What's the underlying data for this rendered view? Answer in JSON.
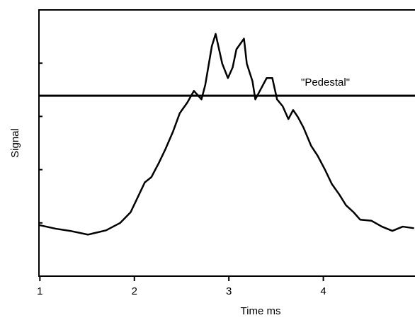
{
  "chart_data": {
    "type": "line",
    "x_label": "Time ms",
    "y_label": "Signal",
    "x": [
      0.99,
      1.17,
      1.32,
      1.51,
      1.7,
      1.85,
      1.96,
      2.03,
      2.11,
      2.18,
      2.26,
      2.33,
      2.41,
      2.48,
      2.56,
      2.63,
      2.71,
      2.75,
      2.82,
      2.86,
      2.93,
      2.99,
      3.04,
      3.08,
      3.16,
      3.19,
      3.25,
      3.28,
      3.34,
      3.4,
      3.46,
      3.51,
      3.57,
      3.63,
      3.68,
      3.73,
      3.79,
      3.87,
      3.94,
      4.02,
      4.09,
      4.17,
      4.24,
      4.32,
      4.39,
      4.51,
      4.62,
      4.73,
      4.84,
      4.96
    ],
    "series": [
      {
        "color": "#000000",
        "values": [
          0.96,
          0.89,
          0.85,
          0.78,
          0.86,
          1.0,
          1.2,
          1.46,
          1.76,
          1.86,
          2.13,
          2.39,
          2.72,
          3.06,
          3.26,
          3.48,
          3.32,
          3.59,
          4.32,
          4.55,
          3.99,
          3.72,
          3.92,
          4.26,
          4.46,
          3.99,
          3.66,
          3.32,
          3.52,
          3.72,
          3.72,
          3.32,
          3.19,
          2.95,
          3.12,
          2.99,
          2.79,
          2.45,
          2.26,
          1.99,
          1.73,
          1.53,
          1.33,
          1.2,
          1.06,
          1.04,
          0.93,
          0.85,
          0.93,
          0.9
        ]
      }
    ],
    "reference_line": {
      "label": "\"Pedestal\"",
      "value": 3.39
    },
    "xlim": [
      0.99,
      4.97
    ],
    "ylim": [
      0,
      5
    ],
    "xticks": [
      1,
      2,
      3,
      4
    ],
    "yticks": [
      1,
      2,
      3,
      4
    ],
    "grid": false
  }
}
